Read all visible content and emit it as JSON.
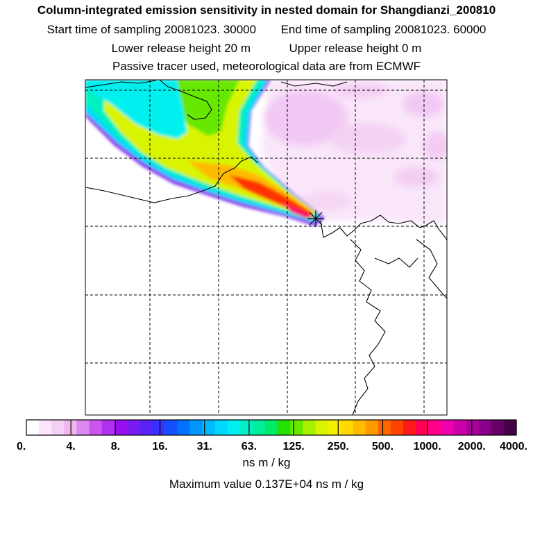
{
  "header": {
    "title": "Column-integrated emission sensitivity in nested domain for Shangdianzi_200810",
    "start_label": "Start time of sampling 20081023. 30000",
    "end_label": "End time of sampling 20081023. 60000",
    "lower_label": "Lower release height   20 m",
    "upper_label": "Upper release height    0 m",
    "note": "Passive tracer used, meteorological data are from ECMWF"
  },
  "chart_data": {
    "type": "heatmap",
    "title": "Column-integrated emission sensitivity in nested domain for Shangdianzi_200810",
    "colorbar": {
      "tick_labels": [
        "0.",
        "4.",
        "8.",
        "16.",
        "31.",
        "63.",
        "125.",
        "250.",
        "500.",
        "1000.",
        "2000.",
        "4000."
      ],
      "unit": "ns m / kg",
      "colors": [
        "#ffffff",
        "#fbe6fb",
        "#f5d0f5",
        "#eeb6ee",
        "#dd88ee",
        "#cc55ee",
        "#b030ee",
        "#9910ee",
        "#7a1cf0",
        "#5a22f5",
        "#3a30ff",
        "#1550ff",
        "#0070ff",
        "#0098ff",
        "#00bbff",
        "#00d8ff",
        "#00f0f0",
        "#00f0c8",
        "#00ee9a",
        "#00ea66",
        "#22e000",
        "#66e800",
        "#a8f000",
        "#d8f400",
        "#f4f000",
        "#ffd800",
        "#ffbb00",
        "#ff9900",
        "#ff6600",
        "#ff4400",
        "#ff1a1a",
        "#ff0055",
        "#ff0088",
        "#ee00aa",
        "#cc00aa",
        "#aa0099",
        "#880088",
        "#660066",
        "#440044"
      ]
    },
    "maximum_value_text": "Maximum value  0.137E+04 ns m / kg",
    "maximum_value": 1370,
    "receptor_marker": "X",
    "grid": true
  }
}
